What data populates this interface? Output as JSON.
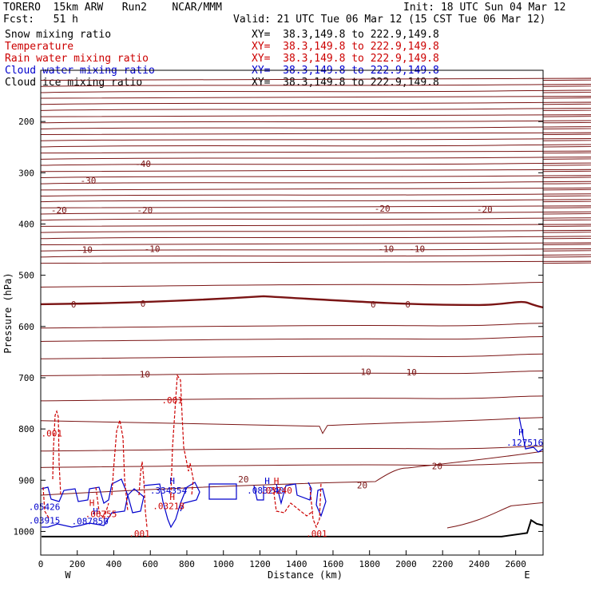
{
  "header": {
    "model": "TORERO  15km ARW   Run2    NCAR/MMM",
    "init": "Init: 18 UTC Sun 04 Mar 12",
    "fcst": "Fcst:   51 h",
    "valid": "Valid: 21 UTC Tue 06 Mar 12 (15 CST Tue 06 Mar 12)"
  },
  "legend": [
    {
      "label": "Snow mixing ratio",
      "color": "#000000",
      "xy": "XY=  38.3,149.8 to 222.9,149.8"
    },
    {
      "label": "Temperature",
      "color": "#cc0000",
      "xy": "XY=  38.3,149.8 to 222.9,149.8"
    },
    {
      "label": "Rain water mixing ratio",
      "color": "#cc0000",
      "xy": "XY=  38.3,149.8 to 222.9,149.8"
    },
    {
      "label": "Cloud water mixing ratio",
      "color": "#0000cc",
      "xy": "XY=  38.3,149.8 to 222.9,149.8"
    },
    {
      "label": "Cloud ice mixing ratio",
      "color": "#000000",
      "xy": "XY=  38.3,149.8 to 222.9,149.8"
    }
  ],
  "chart_data": {
    "type": "cross-section",
    "xlabel": "Distance (km)",
    "ylabel": "Pressure (hPa)",
    "xlim": [
      0,
      2750
    ],
    "ylim": [
      1050,
      100
    ],
    "x_ticks": [
      "0",
      "200",
      "400",
      "600",
      "800",
      "1000",
      "1200",
      "1400",
      "1600",
      "1800",
      "2000",
      "2200",
      "2400",
      "2600"
    ],
    "y_ticks": [
      "200",
      "300",
      "400",
      "500",
      "600",
      "700",
      "800",
      "900",
      "1000"
    ],
    "west_label": "W",
    "east_label": "E",
    "temperature_isotherms_hPa": [
      118,
      130,
      142,
      153,
      165,
      177,
      189,
      201,
      213,
      224,
      236,
      248,
      260,
      272,
      284,
      296,
      308,
      320,
      332,
      344,
      355,
      367,
      379,
      391,
      403,
      415,
      427,
      439,
      451,
      463,
      475
    ],
    "temperature_labels": [
      {
        "text": "-40",
        "x": 560,
        "p": 282
      },
      {
        "text": "-30",
        "x": 260,
        "p": 315
      },
      {
        "text": "-20",
        "x": 100,
        "p": 373
      },
      {
        "text": "-20",
        "x": 570,
        "p": 373
      },
      {
        "text": "-20",
        "x": 1870,
        "p": 370
      },
      {
        "text": "-20",
        "x": 2430,
        "p": 371
      },
      {
        "text": "-10",
        "x": 240,
        "p": 450
      },
      {
        "text": "-10",
        "x": 610,
        "p": 448
      },
      {
        "text": "-10",
        "x": 1890,
        "p": 448
      },
      {
        "text": "-10",
        "x": 2060,
        "p": 448
      },
      {
        "text": "0",
        "x": 180,
        "p": 557
      },
      {
        "text": "0",
        "x": 560,
        "p": 555
      },
      {
        "text": "0",
        "x": 1820,
        "p": 557
      },
      {
        "text": "0",
        "x": 2010,
        "p": 557
      },
      {
        "text": "10",
        "x": 570,
        "p": 693
      },
      {
        "text": "10",
        "x": 1780,
        "p": 688
      },
      {
        "text": "10",
        "x": 2030,
        "p": 689
      },
      {
        "text": "20",
        "x": 1110,
        "p": 898
      },
      {
        "text": "20",
        "x": 1760,
        "p": 910
      },
      {
        "text": "20",
        "x": 2170,
        "p": 872
      }
    ],
    "cloud_labels": [
      {
        "text": "H",
        "x": 720,
        "p": 901
      },
      {
        "text": ".334354",
        "x": 700,
        "p": 920
      },
      {
        "text": "H",
        "x": 1240,
        "p": 901
      },
      {
        "text": ".083240",
        "x": 1230,
        "p": 920
      },
      {
        "text": "H",
        "x": 300,
        "p": 960
      },
      {
        "text": ".087850",
        "x": 270,
        "p": 980
      },
      {
        "text": ".05426",
        "x": 20,
        "p": 952
      },
      {
        "text": ".03915",
        "x": 20,
        "p": 978
      },
      {
        "text": "H",
        "x": 2630,
        "p": 806
      },
      {
        "text": ".127516",
        "x": 2650,
        "p": 826
      }
    ],
    "rain_labels": [
      {
        "text": ".001",
        "x": 720,
        "p": 744
      },
      {
        "text": ".001",
        "x": 60,
        "p": 808
      },
      {
        "text": "H",
        "x": 280,
        "p": 944
      },
      {
        "text": ".06755",
        "x": 330,
        "p": 966
      },
      {
        "text": "H",
        "x": 720,
        "p": 932
      },
      {
        "text": ".03218",
        "x": 700,
        "p": 950
      },
      {
        "text": "H",
        "x": 1290,
        "p": 901
      },
      {
        "text": ".03240",
        "x": 1290,
        "p": 920
      },
      {
        "text": ".001",
        "x": 540,
        "p": 1004
      },
      {
        "text": ".001",
        "x": 1510,
        "p": 1004
      }
    ]
  }
}
